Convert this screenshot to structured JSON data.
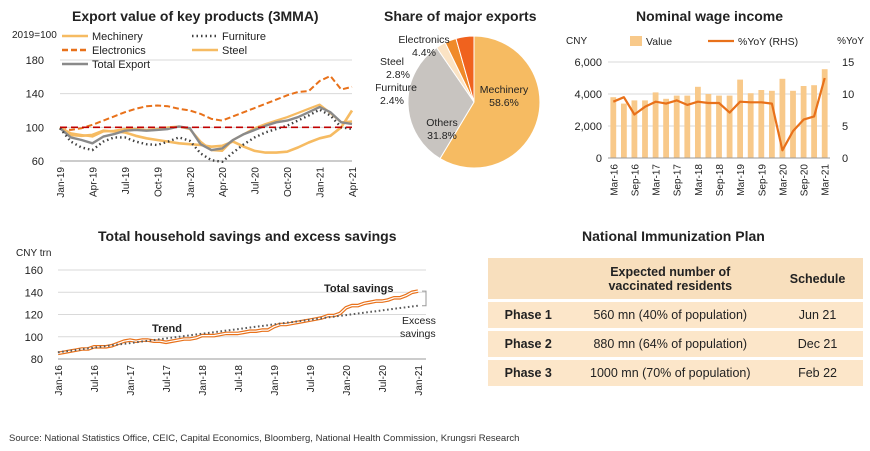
{
  "source": "Source: National Statistics Office, CEIC, Capital Economics, Bloomberg, National Health Commission, Krungsri Research",
  "colors": {
    "machinery": "#f6bb62",
    "furniture": "#404040",
    "electronics": "#e8711a",
    "steel": "#f6bb62",
    "total": "#8a8a8a",
    "baseline": "#c00000",
    "savings": "#e8711a",
    "trend": "#595959",
    "bar": "#f8c98a",
    "pie_machinery": "#f6bb62",
    "pie_others": "#c8c4c0",
    "pie_furniture": "#fbe3c4",
    "pie_steel": "#f08a2a",
    "pie_electronics": "#f0621e",
    "table_header": "#f8dfbd",
    "table_row": "#fce6c9"
  },
  "chart_data": [
    {
      "id": "export",
      "type": "line",
      "title": "Export value of key products (3MMA)",
      "unit_label": "2019=100",
      "ylim": [
        60,
        180
      ],
      "yticks": [
        60,
        100,
        140,
        180
      ],
      "xticks": [
        "Jan-19",
        "Apr-19",
        "Jul-19",
        "Oct-19",
        "Jan-20",
        "Apr-20",
        "Jul-20",
        "Oct-20",
        "Jan-21",
        "Apr-21"
      ],
      "x": [
        "Jan-19",
        "Feb-19",
        "Mar-19",
        "Apr-19",
        "May-19",
        "Jun-19",
        "Jul-19",
        "Aug-19",
        "Sep-19",
        "Oct-19",
        "Nov-19",
        "Dec-19",
        "Jan-20",
        "Feb-20",
        "Mar-20",
        "Apr-20",
        "May-20",
        "Jun-20",
        "Jul-20",
        "Aug-20",
        "Sep-20",
        "Oct-20",
        "Nov-20",
        "Dec-20",
        "Jan-21",
        "Feb-21",
        "Mar-21",
        "Apr-21"
      ],
      "baseline": 100,
      "legend": [
        {
          "name": "Mechinery",
          "style": "solid",
          "color": "machinery"
        },
        {
          "name": "Furniture",
          "style": "dotted",
          "color": "furniture"
        },
        {
          "name": "Electronics",
          "style": "dashed",
          "color": "electronics"
        },
        {
          "name": "Steel",
          "style": "solid",
          "color": "steel"
        },
        {
          "name": "Total Export",
          "style": "solid",
          "color": "total"
        }
      ],
      "series": [
        {
          "name": "Electronics",
          "values": [
            98,
            97,
            99,
            103,
            108,
            113,
            118,
            122,
            125,
            126,
            125,
            122,
            120,
            116,
            110,
            108,
            113,
            118,
            123,
            128,
            133,
            138,
            142,
            143,
            155,
            161,
            145,
            148
          ]
        },
        {
          "name": "Mechinery",
          "values": [
            100,
            93,
            91,
            89,
            95,
            96,
            98,
            98,
            97,
            98,
            100,
            101,
            98,
            83,
            73,
            72,
            85,
            92,
            99,
            104,
            108,
            112,
            117,
            122,
            127,
            117,
            106,
            107
          ]
        },
        {
          "name": "Steel",
          "values": [
            100,
            91,
            90,
            91,
            96,
            95,
            94,
            90,
            87,
            85,
            83,
            81,
            80,
            79,
            77,
            78,
            83,
            77,
            72,
            70,
            70,
            71,
            76,
            82,
            87,
            90,
            100,
            120
          ]
        },
        {
          "name": "Total Export",
          "values": [
            99,
            88,
            85,
            81,
            89,
            92,
            96,
            97,
            96,
            97,
            98,
            101,
            99,
            80,
            73,
            75,
            85,
            92,
            97,
            102,
            106,
            108,
            112,
            118,
            124,
            118,
            106,
            104
          ]
        },
        {
          "name": "Furniture",
          "values": [
            99,
            83,
            76,
            73,
            83,
            88,
            88,
            83,
            80,
            79,
            83,
            88,
            84,
            69,
            61,
            59,
            70,
            80,
            88,
            94,
            98,
            102,
            108,
            114,
            121,
            114,
            100,
            98
          ]
        }
      ]
    },
    {
      "id": "share",
      "type": "pie",
      "title": "Share of major exports",
      "slices": [
        {
          "name": "Mechinery",
          "value": 58.6,
          "label": "58.6%",
          "color": "pie_machinery"
        },
        {
          "name": "Others",
          "value": 31.8,
          "label": "31.8%",
          "color": "pie_others"
        },
        {
          "name": "Furniture",
          "value": 2.4,
          "label": "2.4%",
          "color": "pie_furniture"
        },
        {
          "name": "Steel",
          "value": 2.8,
          "label": "2.8%",
          "color": "pie_steel"
        },
        {
          "name": "Electronics",
          "value": 4.4,
          "label": "4.4%",
          "color": "pie_electronics"
        }
      ]
    },
    {
      "id": "wage",
      "type": "bar",
      "title": "Nominal wage income",
      "ylabel": "CNY",
      "ylabel_right": "%YoY",
      "ylim": [
        0,
        6000
      ],
      "yticks": [
        0,
        2000,
        4000,
        6000
      ],
      "ylim_right": [
        0,
        15
      ],
      "yticks_right": [
        0,
        5,
        10,
        15
      ],
      "xticks": [
        "Mar-16",
        "Sep-16",
        "Mar-17",
        "Sep-17",
        "Mar-18",
        "Sep-18",
        "Mar-19",
        "Sep-19",
        "Mar-20",
        "Sep-20",
        "Mar-21"
      ],
      "legend": [
        "Value",
        "%YoY (RHS)"
      ],
      "categories": [
        "Mar-16",
        "Jun-16",
        "Sep-16",
        "Dec-16",
        "Mar-17",
        "Jun-17",
        "Sep-17",
        "Dec-17",
        "Mar-18",
        "Jun-18",
        "Sep-18",
        "Dec-18",
        "Mar-19",
        "Jun-19",
        "Sep-19",
        "Dec-19",
        "Mar-20",
        "Jun-20",
        "Sep-20",
        "Dec-20",
        "Mar-21"
      ],
      "series": [
        {
          "name": "Value",
          "axis": "left",
          "values": [
            3800,
            3400,
            3600,
            3600,
            4100,
            3700,
            3900,
            3900,
            4450,
            4000,
            3900,
            3900,
            4900,
            4050,
            4250,
            4200,
            4950,
            4200,
            4500,
            4550,
            5550
          ]
        },
        {
          "name": "%YoY (RHS)",
          "axis": "right",
          "values": [
            8.8,
            9.5,
            6.8,
            8.0,
            8.8,
            8.5,
            9.0,
            8.3,
            8.8,
            8.6,
            8.6,
            7.1,
            8.8,
            8.7,
            8.7,
            8.5,
            1.2,
            4.2,
            6.0,
            6.5,
            12.5
          ]
        }
      ]
    },
    {
      "id": "savings",
      "type": "line",
      "title": "Total household savings and excess savings",
      "ylabel": "CNY trn",
      "ylim": [
        80,
        160
      ],
      "yticks": [
        80,
        100,
        120,
        140,
        160
      ],
      "xticks": [
        "Jan-16",
        "Jul-16",
        "Jan-17",
        "Jul-17",
        "Jan-18",
        "Jul-18",
        "Jan-19",
        "Jul-19",
        "Jan-20",
        "Jul-20",
        "Jan-21"
      ],
      "annotations": [
        "Trend",
        "Total savings",
        "Excess",
        "savings"
      ],
      "series": [
        {
          "name": "Total savings",
          "values": [
            85,
            86,
            87,
            88,
            89,
            89,
            91,
            91,
            91,
            92,
            94,
            96,
            97,
            96,
            97,
            97,
            96,
            96,
            95,
            96,
            97,
            98,
            98,
            99,
            101,
            101,
            101,
            102,
            103,
            103,
            103,
            104,
            105,
            105,
            106,
            106,
            109,
            111,
            111,
            112,
            113,
            114,
            115,
            116,
            117,
            119,
            119,
            121,
            126,
            128,
            128,
            130,
            131,
            132,
            132,
            133,
            135,
            135,
            137,
            140,
            141
          ]
        },
        {
          "name": "Trend",
          "values": [
            86,
            86.7,
            87.4,
            88.1,
            88.8,
            89.5,
            90.2,
            90.9,
            91.6,
            92.3,
            93,
            93.7,
            94.3,
            95,
            95.7,
            96.4,
            97.1,
            97.8,
            98.5,
            99.2,
            99.9,
            100.6,
            101.3,
            102,
            102.7,
            103.4,
            104.1,
            104.8,
            105.5,
            106.2,
            106.9,
            107.6,
            108.3,
            109,
            109.7,
            110.4,
            111.1,
            111.8,
            112.5,
            113.2,
            113.9,
            114.6,
            115.3,
            116,
            116.7,
            117.4,
            118.1,
            118.8,
            119.5,
            120.2,
            120.9,
            121.6,
            122.3,
            123,
            123.7,
            124.4,
            125.1,
            125.8,
            126.5,
            127.2,
            127.9
          ]
        }
      ]
    },
    {
      "id": "immunization",
      "type": "table",
      "title": "National Immunization Plan",
      "columns": [
        "",
        "Expected number of vaccinated residents",
        "Schedule"
      ],
      "rows": [
        [
          "Phase 1",
          "560 mn  (40% of population)",
          "Jun 21"
        ],
        [
          "Phase 2",
          "880 mn  (64% of population)",
          "Dec 21"
        ],
        [
          "Phase 3",
          "1000 mn  (70% of population)",
          "Feb 22"
        ]
      ]
    }
  ]
}
